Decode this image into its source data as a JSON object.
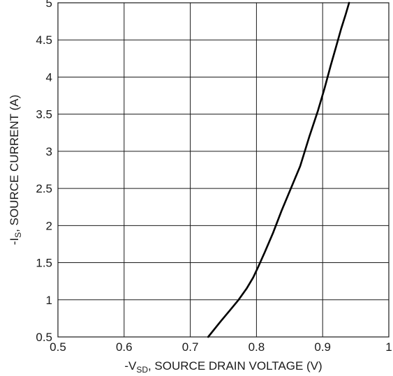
{
  "chart_data": {
    "type": "line",
    "title": "",
    "xlabel": {
      "prefix": "-V",
      "sub": "SD",
      "suffix": ", SOURCE DRAIN VOLTAGE (V)"
    },
    "ylabel": {
      "prefix": "-I",
      "sub": "S",
      "suffix": ", SOURCE CURRENT (A)"
    },
    "xlim": [
      0.5,
      1.0
    ],
    "ylim": [
      0.5,
      5.0
    ],
    "xticks": [
      0.5,
      0.6,
      0.7,
      0.8,
      0.9,
      1.0
    ],
    "xtick_labels": [
      "0.5",
      "0.6",
      "0.7",
      "0.8",
      "0.9",
      "1"
    ],
    "yticks": [
      0.5,
      1.0,
      1.5,
      2.0,
      2.5,
      3.0,
      3.5,
      4.0,
      4.5,
      5.0
    ],
    "ytick_labels": [
      "0.5",
      "1",
      "1.5",
      "2",
      "2.5",
      "3",
      "3.5",
      "4",
      "4.5",
      "5"
    ],
    "grid": true,
    "series": [
      {
        "x": [
          0.727,
          0.745,
          0.76,
          0.773,
          0.785,
          0.795,
          0.803,
          0.813,
          0.825,
          0.838,
          0.852,
          0.866,
          0.88,
          0.893,
          0.903,
          0.912,
          0.92,
          0.928,
          0.935,
          0.94
        ],
        "y": [
          0.5,
          0.7,
          0.86,
          1.0,
          1.15,
          1.3,
          1.45,
          1.65,
          1.9,
          2.2,
          2.5,
          2.8,
          3.2,
          3.55,
          3.85,
          4.15,
          4.4,
          4.65,
          4.85,
          5.0
        ]
      }
    ]
  }
}
